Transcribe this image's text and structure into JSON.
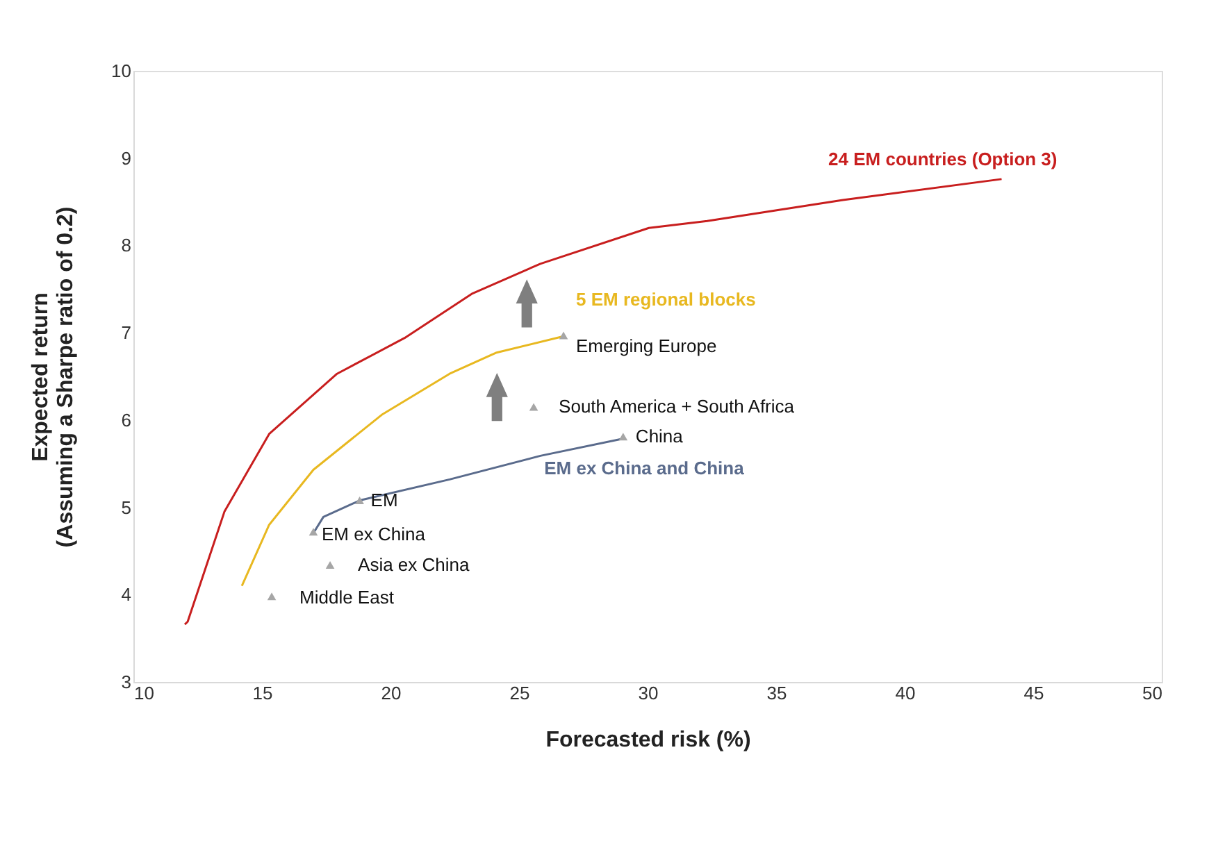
{
  "chart_data": {
    "type": "line",
    "xlabel": "Forecasted risk (%)",
    "ylabel": "Expected return\n(Assuming a Sharpe ratio of 0.2)",
    "xlim": [
      10,
      50
    ],
    "xticks": [
      10,
      15,
      20,
      25,
      30,
      35,
      40,
      45,
      50
    ],
    "ylim": [
      3,
      10
    ],
    "yticks": [
      3,
      4,
      5,
      6,
      7,
      8,
      9,
      10
    ],
    "grid": false,
    "legend": false,
    "series": [
      {
        "name": "24 EM countries (Option 3)",
        "color": "#c81e1e",
        "marker": "none",
        "x": [
          12.0,
          12.11,
          13.54,
          15.28,
          17.92,
          20.55,
          23.19,
          25.83,
          30.05,
          32.32,
          37.6,
          43.77
        ],
        "values": [
          3.66,
          3.69,
          4.95,
          5.84,
          6.53,
          6.94,
          7.45,
          7.79,
          8.2,
          8.28,
          8.52,
          8.76
        ]
      },
      {
        "name": "5 EM regional blocks",
        "color": "#e8b820",
        "marker": "none",
        "x": [
          14.22,
          15.28,
          17.0,
          19.66,
          22.3,
          24.1,
          26.73
        ],
        "values": [
          4.1,
          4.8,
          5.43,
          6.06,
          6.53,
          6.77,
          6.96
        ]
      },
      {
        "name": "EM ex China and China",
        "color": "#5a6b8c",
        "marker": "none",
        "x": [
          16.97,
          17.39,
          18.81,
          22.3,
          25.83,
          29.1
        ],
        "values": [
          4.69,
          4.89,
          5.08,
          5.32,
          5.59,
          5.79
        ]
      },
      {
        "color": "#a6a6a6",
        "type": "scatter",
        "marker": "triangle",
        "x": [
          18.8,
          17.0,
          17.65,
          15.38,
          25.57,
          29.05,
          26.73
        ],
        "values": [
          5.08,
          4.72,
          4.34,
          3.98,
          6.15,
          5.81,
          6.97
        ],
        "value_labels": [
          "EM",
          "EM ex China",
          "Asia ex China",
          "Middle East",
          "South America + South Africa",
          "China",
          "Emerging Europe"
        ]
      }
    ]
  }
}
